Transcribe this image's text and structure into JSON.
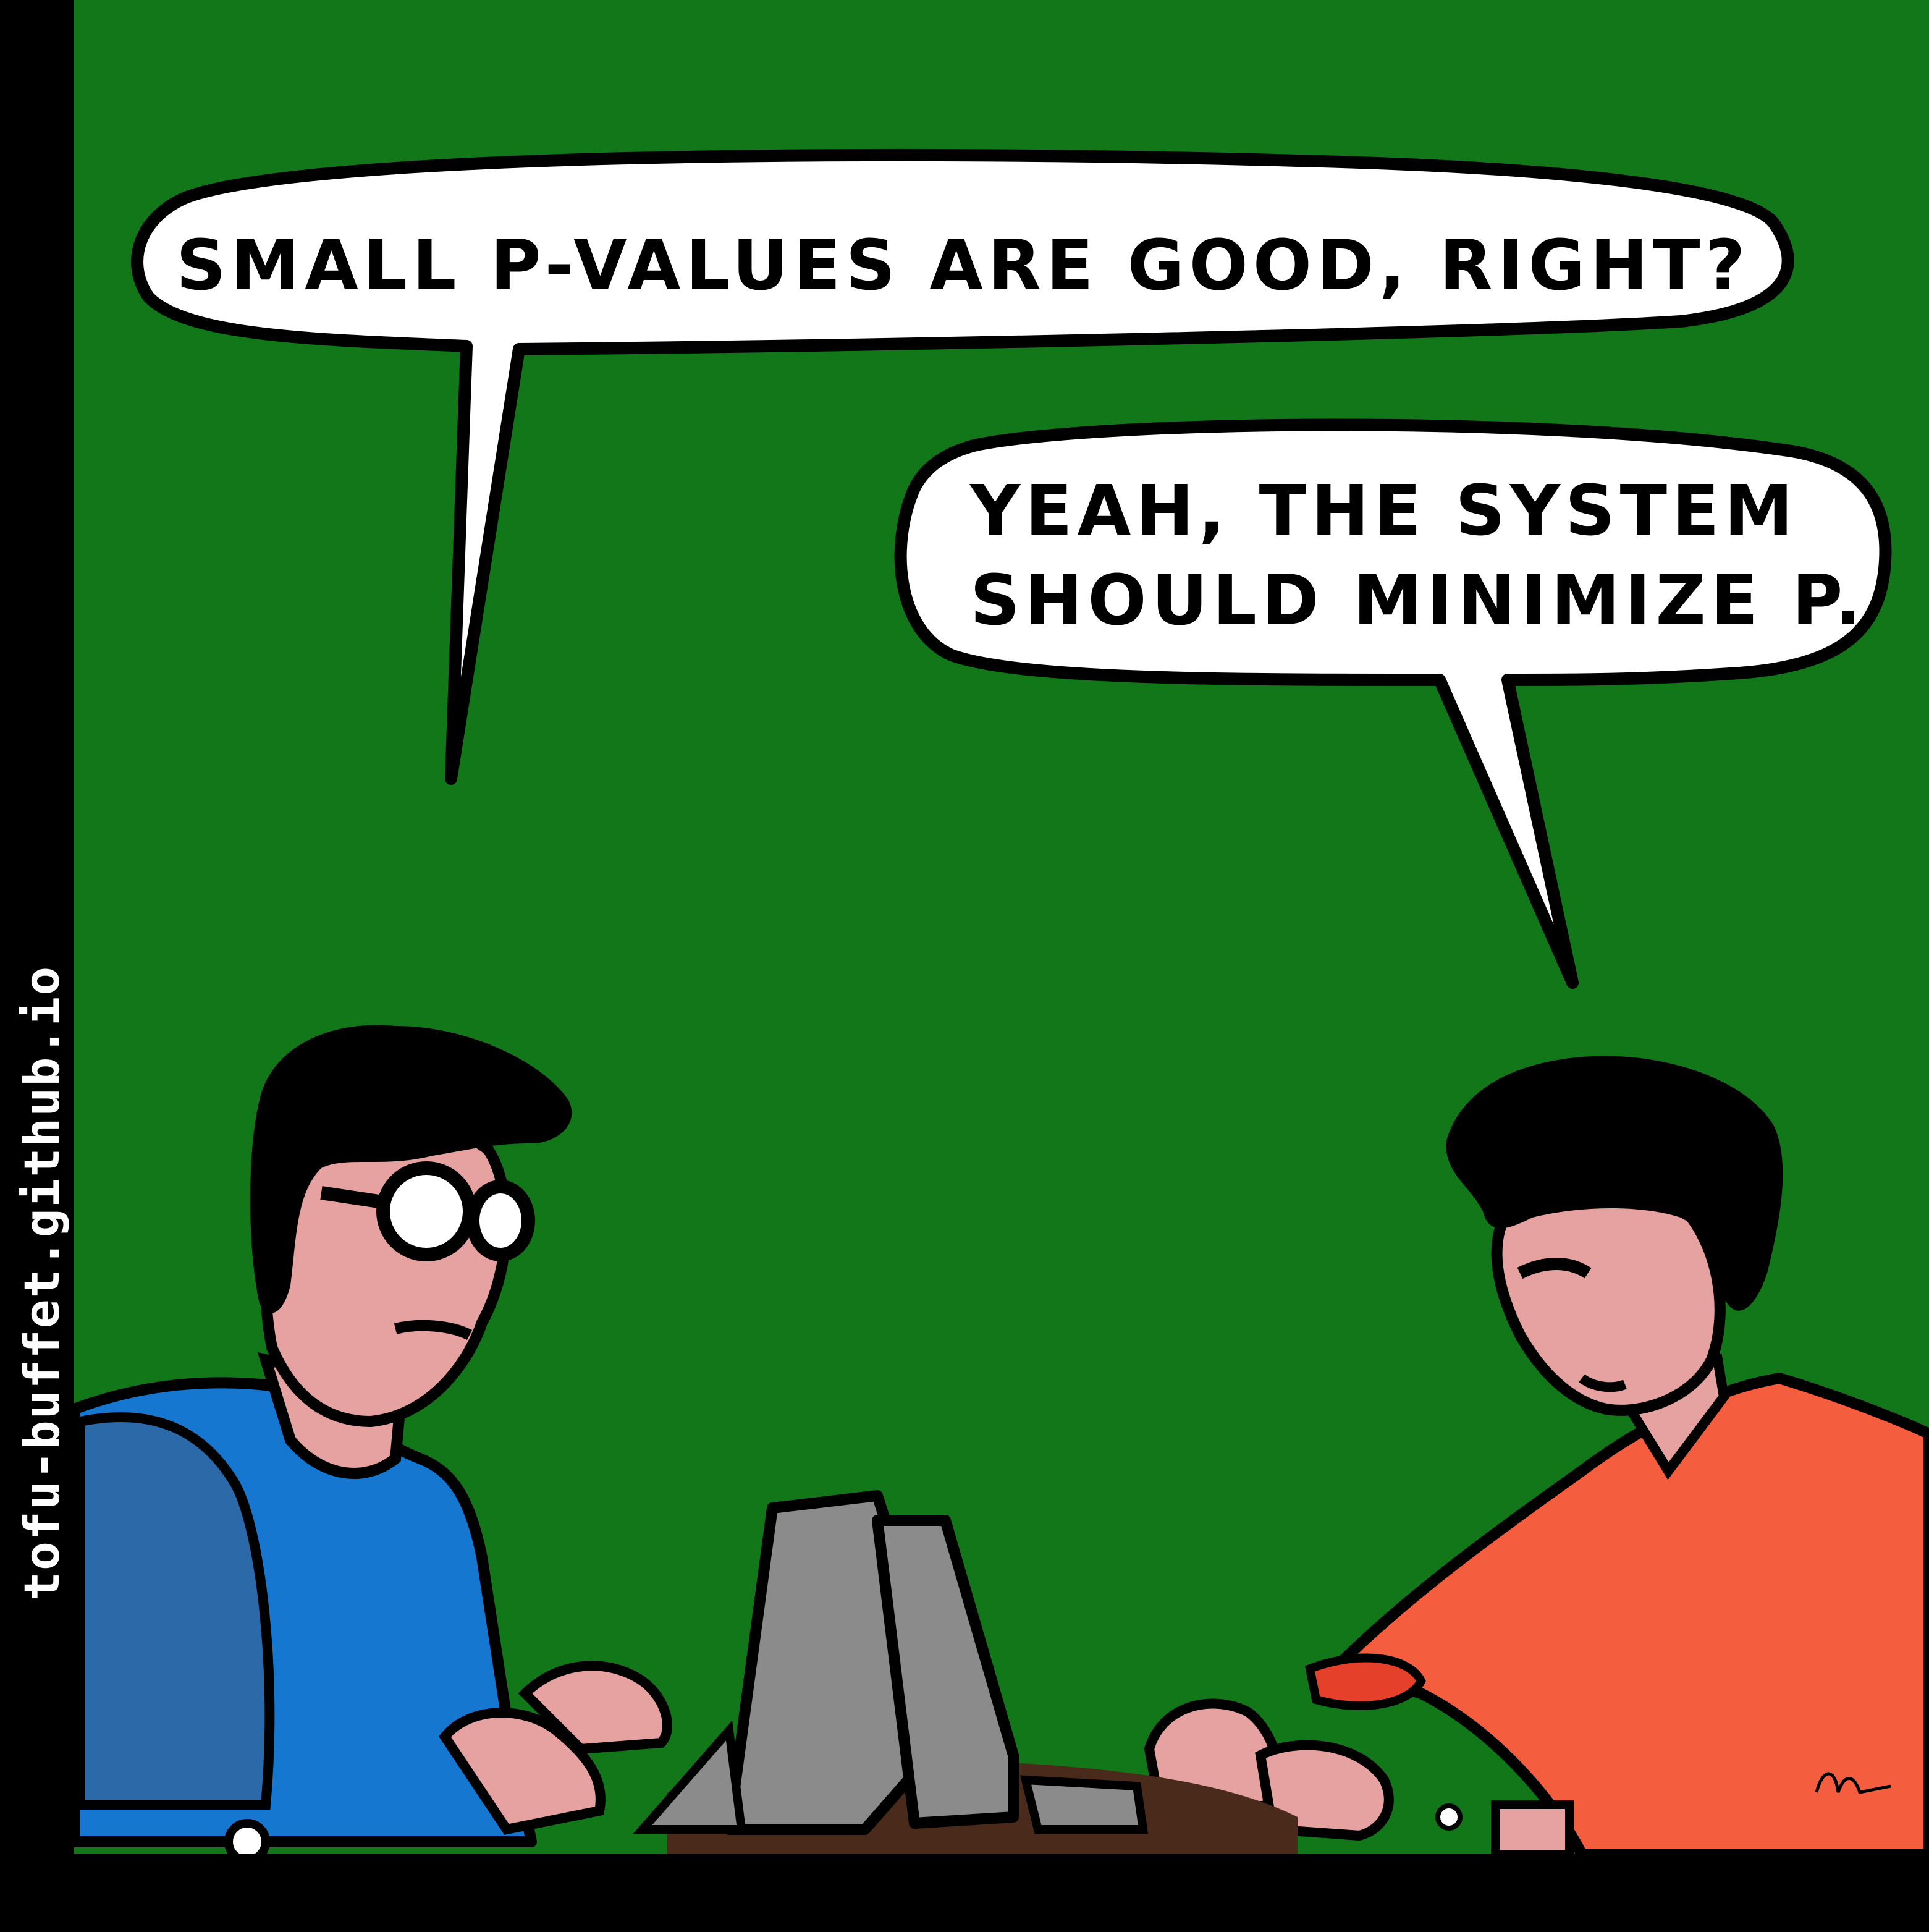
{
  "site_label": "tofu-buffet.github.io",
  "dialogue": {
    "left_speech": "SMALL P-VALUES ARE GOOD, RIGHT?",
    "right_speech_line1": "YEAH, THE SYSTEM",
    "right_speech_line2": "SHOULD MINIMIZE P."
  },
  "colors": {
    "background": "#127718",
    "frame": "#000000",
    "skin": "#e6a1a1",
    "left_shirt": "#1577d0",
    "left_shirt_shade": "#2b69a8",
    "right_shirt": "#f55d3f",
    "right_shirt_shade": "#e4402a",
    "laptop": "#8b8b8b",
    "desk": "#4a2a1a",
    "bubble": "#ffffff",
    "hair": "#000000"
  }
}
